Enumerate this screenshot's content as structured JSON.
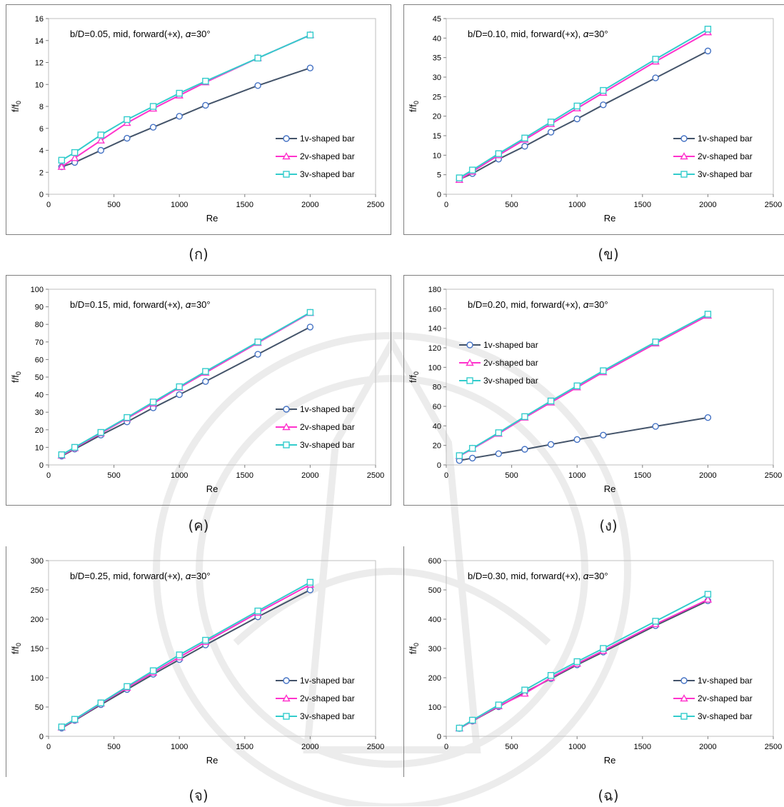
{
  "series_colors": {
    "s1": "#44546a",
    "s1_marker": "#4472c4",
    "s2": "#ff33cc",
    "s3": "#33cccc"
  },
  "chart_data": [
    {
      "type": "line",
      "caption": "(ก)",
      "annotation": "b/D=0.05, mid, forward(+x), 𝛼=30°",
      "xlabel": "Re",
      "ylabel": "f/f0",
      "xlim": [
        0,
        2500
      ],
      "ylim": [
        0,
        16
      ],
      "ystep": 2,
      "xticks": [
        0,
        500,
        1000,
        1500,
        2000,
        2500
      ],
      "yticks": [
        0,
        2,
        4,
        6,
        8,
        10,
        12,
        14,
        16
      ],
      "legend": "right",
      "x": [
        100,
        200,
        400,
        600,
        800,
        1000,
        1200,
        1600,
        2000
      ],
      "series": [
        {
          "name": "1v-shaped bar",
          "values": [
            2.5,
            2.9,
            4.0,
            5.1,
            6.1,
            7.1,
            8.1,
            9.9,
            11.5
          ]
        },
        {
          "name": "2v-shaped bar",
          "values": [
            2.5,
            3.3,
            4.9,
            6.5,
            7.8,
            9.0,
            10.2,
            12.4,
            14.5
          ]
        },
        {
          "name": "3v-shaped bar",
          "values": [
            3.1,
            3.8,
            5.4,
            6.8,
            8.0,
            9.2,
            10.3,
            12.4,
            14.5
          ]
        }
      ]
    },
    {
      "type": "line",
      "caption": "(ข)",
      "annotation": "b/D=0.10, mid, forward(+x), 𝛼=30°",
      "xlabel": "Re",
      "ylabel": "f/f0",
      "xlim": [
        0,
        2500
      ],
      "ylim": [
        0,
        45
      ],
      "xticks": [
        0,
        500,
        1000,
        1500,
        2000,
        2500
      ],
      "yticks": [
        0,
        5,
        10,
        15,
        20,
        25,
        30,
        35,
        40,
        45
      ],
      "legend": "right",
      "x": [
        100,
        200,
        400,
        600,
        800,
        1000,
        1200,
        1600,
        2000
      ],
      "series": [
        {
          "name": "1v-shaped bar",
          "values": [
            3.8,
            5.3,
            9.0,
            12.3,
            15.9,
            19.3,
            22.9,
            29.8,
            36.7
          ]
        },
        {
          "name": "2v-shaped bar",
          "values": [
            3.7,
            5.8,
            10.0,
            14.0,
            18.0,
            22.0,
            26.0,
            34.0,
            41.5
          ]
        },
        {
          "name": "3v-shaped bar",
          "values": [
            4.2,
            6.2,
            10.4,
            14.4,
            18.5,
            22.6,
            26.6,
            34.6,
            42.3
          ]
        }
      ]
    },
    {
      "type": "line",
      "caption": "(ค)",
      "annotation": "b/D=0.15, mid, forward(+x), 𝛼=30°",
      "xlabel": "Re",
      "ylabel": "f/f0",
      "xlim": [
        0,
        2500
      ],
      "ylim": [
        0,
        100
      ],
      "xticks": [
        0,
        500,
        1000,
        1500,
        2000,
        2500
      ],
      "yticks": [
        0,
        10,
        20,
        30,
        40,
        50,
        60,
        70,
        80,
        90,
        100
      ],
      "legend": "right",
      "x": [
        100,
        200,
        400,
        600,
        800,
        1000,
        1200,
        1600,
        2000
      ],
      "series": [
        {
          "name": "1v-shaped bar",
          "values": [
            5.0,
            9.0,
            17.0,
            24.5,
            32.5,
            40.0,
            47.5,
            63.0,
            78.5
          ]
        },
        {
          "name": "2v-shaped bar",
          "values": [
            5.3,
            9.6,
            18.0,
            26.5,
            35.0,
            44.0,
            52.5,
            69.5,
            86.5
          ]
        },
        {
          "name": "3v-shaped bar",
          "values": [
            5.8,
            10.0,
            18.5,
            27.0,
            35.8,
            44.5,
            53.2,
            70.0,
            86.8
          ]
        }
      ]
    },
    {
      "type": "line",
      "caption": "(ง)",
      "annotation": "b/D=0.20, mid, forward(+x), 𝛼=30°",
      "xlabel": "Re",
      "ylabel": "f/f0",
      "xlim": [
        0,
        2500
      ],
      "ylim": [
        0,
        180
      ],
      "xticks": [
        0,
        500,
        1000,
        1500,
        2000,
        2500
      ],
      "yticks": [
        0,
        20,
        40,
        60,
        80,
        100,
        120,
        140,
        160,
        180
      ],
      "legend": "top-left",
      "x": [
        100,
        200,
        400,
        600,
        800,
        1000,
        1200,
        1600,
        2000
      ],
      "series": [
        {
          "name": "1v-shaped bar",
          "values": [
            4.5,
            7.0,
            11.5,
            16.0,
            21.0,
            26.0,
            30.5,
            39.5,
            48.5
          ]
        },
        {
          "name": "2v-shaped bar",
          "values": [
            9.0,
            16.5,
            32.0,
            48.5,
            64.0,
            79.5,
            95.0,
            124.5,
            153.0
          ]
        },
        {
          "name": "3v-shaped bar",
          "values": [
            9.5,
            17.0,
            33.0,
            49.5,
            65.5,
            81.0,
            96.5,
            126.0,
            154.5
          ]
        }
      ]
    },
    {
      "type": "line",
      "caption": "(จ)",
      "annotation": "b/D=0.25, mid, forward(+x), 𝛼=30°",
      "xlabel": "Re",
      "ylabel": "f/f0",
      "xlim": [
        0,
        2500
      ],
      "ylim": [
        0,
        300
      ],
      "xticks": [
        0,
        500,
        1000,
        1500,
        2000,
        2500
      ],
      "yticks": [
        0,
        50,
        100,
        150,
        200,
        250,
        300
      ],
      "legend": "right",
      "x": [
        100,
        200,
        400,
        600,
        800,
        1000,
        1200,
        1600,
        2000
      ],
      "series": [
        {
          "name": "1v-shaped bar",
          "values": [
            14,
            27,
            54,
            80,
            106,
            131,
            156,
            204,
            250
          ]
        },
        {
          "name": "2v-shaped bar",
          "values": [
            15,
            28,
            56,
            83,
            109,
            135,
            161,
            211,
            259
          ]
        },
        {
          "name": "3v-shaped bar",
          "values": [
            16,
            29,
            57,
            85,
            112,
            139,
            164,
            214,
            263
          ]
        }
      ]
    },
    {
      "type": "line",
      "caption": "(ฉ)",
      "annotation": "b/D=0.30, mid, forward(+x), 𝛼=30°",
      "xlabel": "Re",
      "ylabel": "f/f0",
      "xlim": [
        0,
        2500
      ],
      "ylim": [
        0,
        600
      ],
      "xticks": [
        0,
        500,
        1000,
        1500,
        2000,
        2500
      ],
      "yticks": [
        0,
        100,
        200,
        300,
        400,
        500,
        600
      ],
      "legend": "right",
      "x": [
        100,
        200,
        400,
        600,
        800,
        1000,
        1200,
        1600,
        2000
      ],
      "series": [
        {
          "name": "1v-shaped bar",
          "values": [
            27,
            52,
            101,
            150,
            197,
            244,
            288,
            378,
            463
          ]
        },
        {
          "name": "2v-shaped bar",
          "values": [
            27,
            53,
            103,
            146,
            200,
            248,
            292,
            383,
            467
          ]
        },
        {
          "name": "3v-shaped bar",
          "values": [
            28,
            55,
            107,
            158,
            208,
            255,
            300,
            393,
            485
          ]
        }
      ]
    }
  ]
}
